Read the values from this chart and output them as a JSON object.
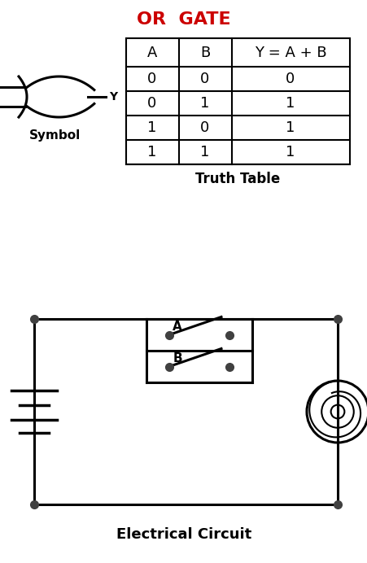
{
  "title": "OR  GATE",
  "title_color": "#cc0000",
  "title_fontsize": 16,
  "truth_table": {
    "headers": [
      "A",
      "B",
      "Y = A + B"
    ],
    "rows": [
      [
        "0",
        "0",
        "0"
      ],
      [
        "0",
        "1",
        "1"
      ],
      [
        "1",
        "0",
        "1"
      ],
      [
        "1",
        "1",
        "1"
      ]
    ],
    "label": "Truth Table"
  },
  "symbol_label": "Symbol",
  "circuit_label": "Electrical Circuit",
  "bg_color": "#ffffff",
  "line_color": "#000000",
  "dot_color": "#404040"
}
